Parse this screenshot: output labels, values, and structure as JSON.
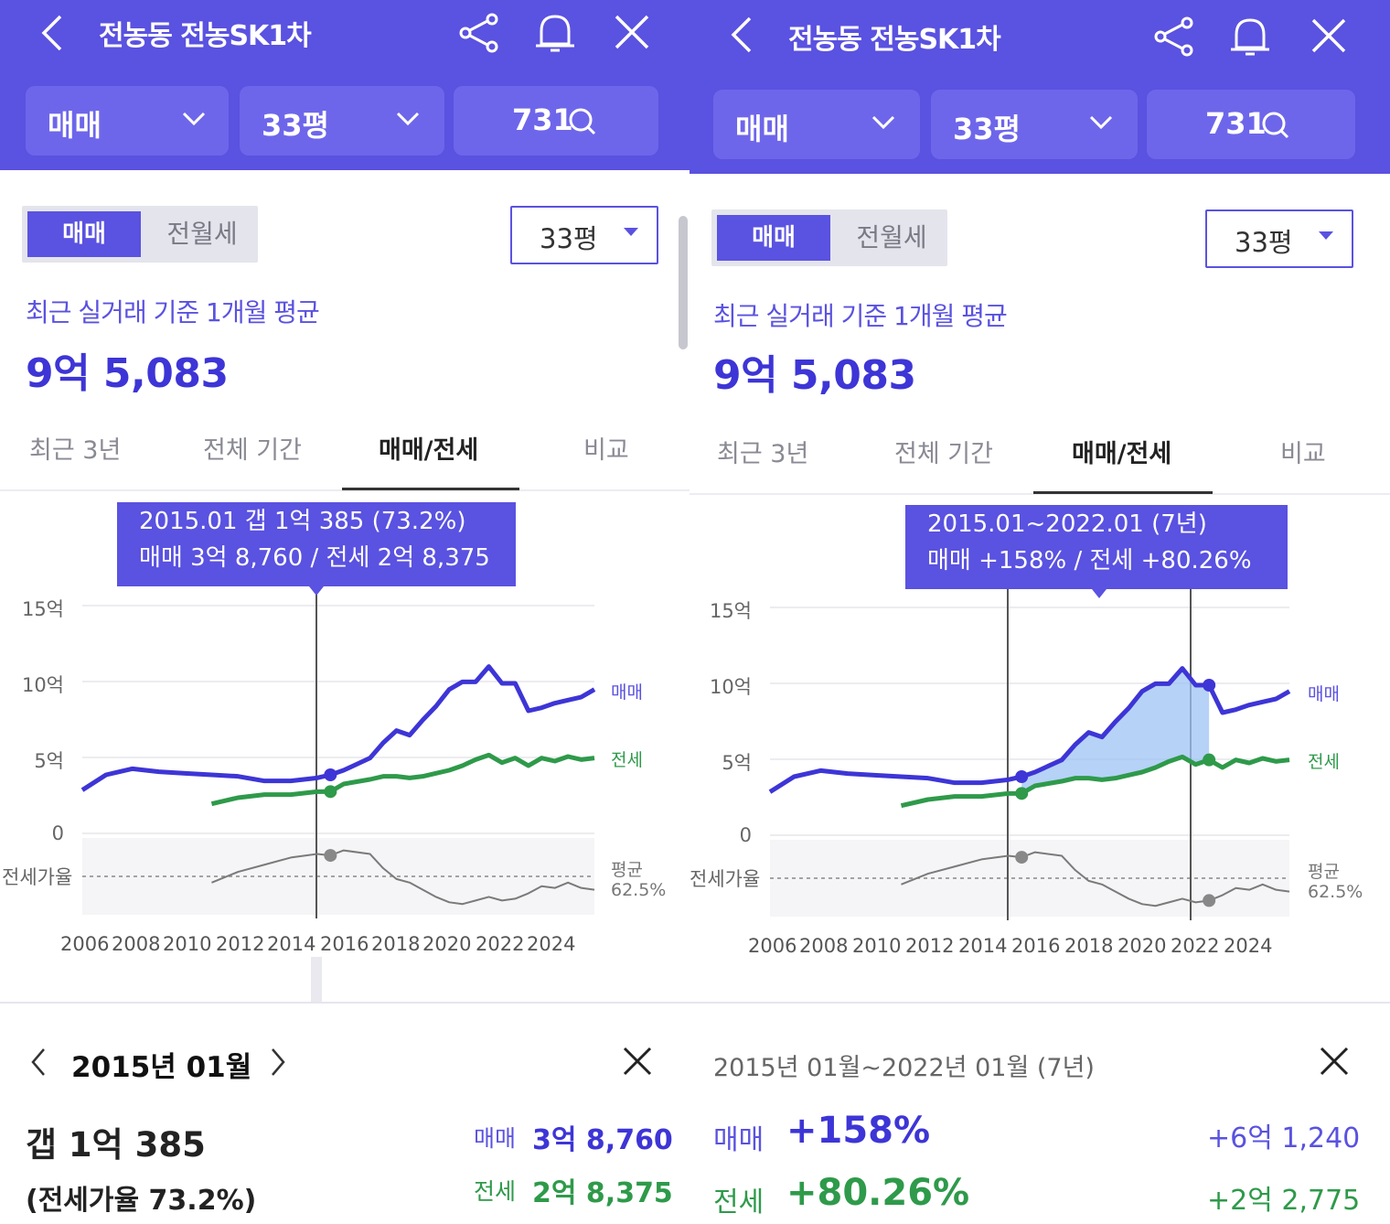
{
  "header": {
    "title": "전농동 전농SK1차",
    "deal_filter": "매매",
    "size_filter": "33평",
    "search_value": "731"
  },
  "segment": {
    "active": "매매",
    "inactive": "전월세"
  },
  "pyeong_select": "33평",
  "avg_label": "최근 실거래 기준 1개월 평균",
  "avg_price": "9억 5,083",
  "tabs": [
    "최근 3년",
    "전체 기간",
    "매매/전세",
    "비교"
  ],
  "active_tab": "매매/전세",
  "colors": {
    "brand": "#5a52e0",
    "sale": "#3d35d6",
    "jeonse": "#2e9a4a",
    "ratio": "#7a7a7a"
  },
  "chart_labels": {
    "y_ticks": [
      "15억",
      "10억",
      "5억",
      "0"
    ],
    "ratio_label": "전세가율",
    "avg_label": "평균",
    "avg_value": "62.5%",
    "legend_sale": "매매",
    "legend_jeonse": "전세",
    "x_ticks": [
      "2006",
      "2008",
      "2010",
      "2012",
      "2014",
      "2016",
      "2018",
      "2020",
      "2022",
      "2024"
    ]
  },
  "chart_data": {
    "type": "line",
    "x": [
      2005.6,
      2006.5,
      2007.5,
      2008.5,
      2009.5,
      2010.5,
      2011.5,
      2012.5,
      2013.5,
      2014.5,
      2015.0,
      2015.5,
      2016.5,
      2017.0,
      2017.5,
      2018.0,
      2018.5,
      2019.0,
      2019.5,
      2020.0,
      2020.5,
      2021.0,
      2021.5,
      2022.0,
      2022.5,
      2023.0,
      2023.5,
      2024.0,
      2024.5,
      2025.0
    ],
    "series": [
      {
        "name": "매매",
        "values": [
          2.9,
          3.9,
          4.3,
          4.1,
          4.0,
          3.9,
          3.8,
          3.5,
          3.5,
          3.7,
          3.9,
          4.2,
          5.0,
          6.0,
          6.8,
          6.5,
          7.5,
          8.4,
          9.5,
          10.0,
          10.0,
          11.0,
          9.9,
          9.9,
          8.1,
          8.3,
          8.6,
          8.8,
          9.0,
          9.5
        ]
      },
      {
        "name": "전세",
        "values": [
          null,
          null,
          null,
          null,
          null,
          2.0,
          2.4,
          2.6,
          2.6,
          2.8,
          2.8,
          3.3,
          3.6,
          3.8,
          3.8,
          3.7,
          3.8,
          4.0,
          4.2,
          4.5,
          4.9,
          5.2,
          4.7,
          5.0,
          4.5,
          5.0,
          4.8,
          5.1,
          4.9,
          5.0
        ]
      },
      {
        "name": "전세가율",
        "values": [
          null,
          null,
          null,
          null,
          null,
          58,
          64,
          68,
          72,
          74,
          73.2,
          76,
          74,
          66,
          60,
          58,
          54,
          50,
          47,
          46,
          48,
          50,
          48,
          49,
          52,
          56,
          55,
          58,
          55,
          54
        ]
      }
    ],
    "ylim": [
      0,
      15
    ],
    "ratio_average": 62.5
  },
  "left": {
    "tooltip_line1": "2015.01  갭 1억 385 (73.2%)",
    "tooltip_line2": "매매 3억 8,760 / 전세 2억 8,375",
    "detail": {
      "month": "2015년 01월",
      "gap": "갭 1억 385",
      "ratio": "(전세가율 73.2%)",
      "sale_label": "매매",
      "sale_value": "3억 8,760",
      "jeonse_label": "전세",
      "jeonse_value": "2억 8,375"
    }
  },
  "right": {
    "tooltip_line1": "2015.01~2022.01 (7년)",
    "tooltip_line2": "매매 +158%  /  전세 +80.26%",
    "detail": {
      "period": "2015년 01월~2022년 01월 (7년)",
      "sale_label": "매매",
      "sale_pct": "+158%",
      "sale_amount": "+6억 1,240",
      "jeonse_label": "전세",
      "jeonse_pct": "+80.26%",
      "jeonse_amount": "+2억 2,775"
    }
  }
}
